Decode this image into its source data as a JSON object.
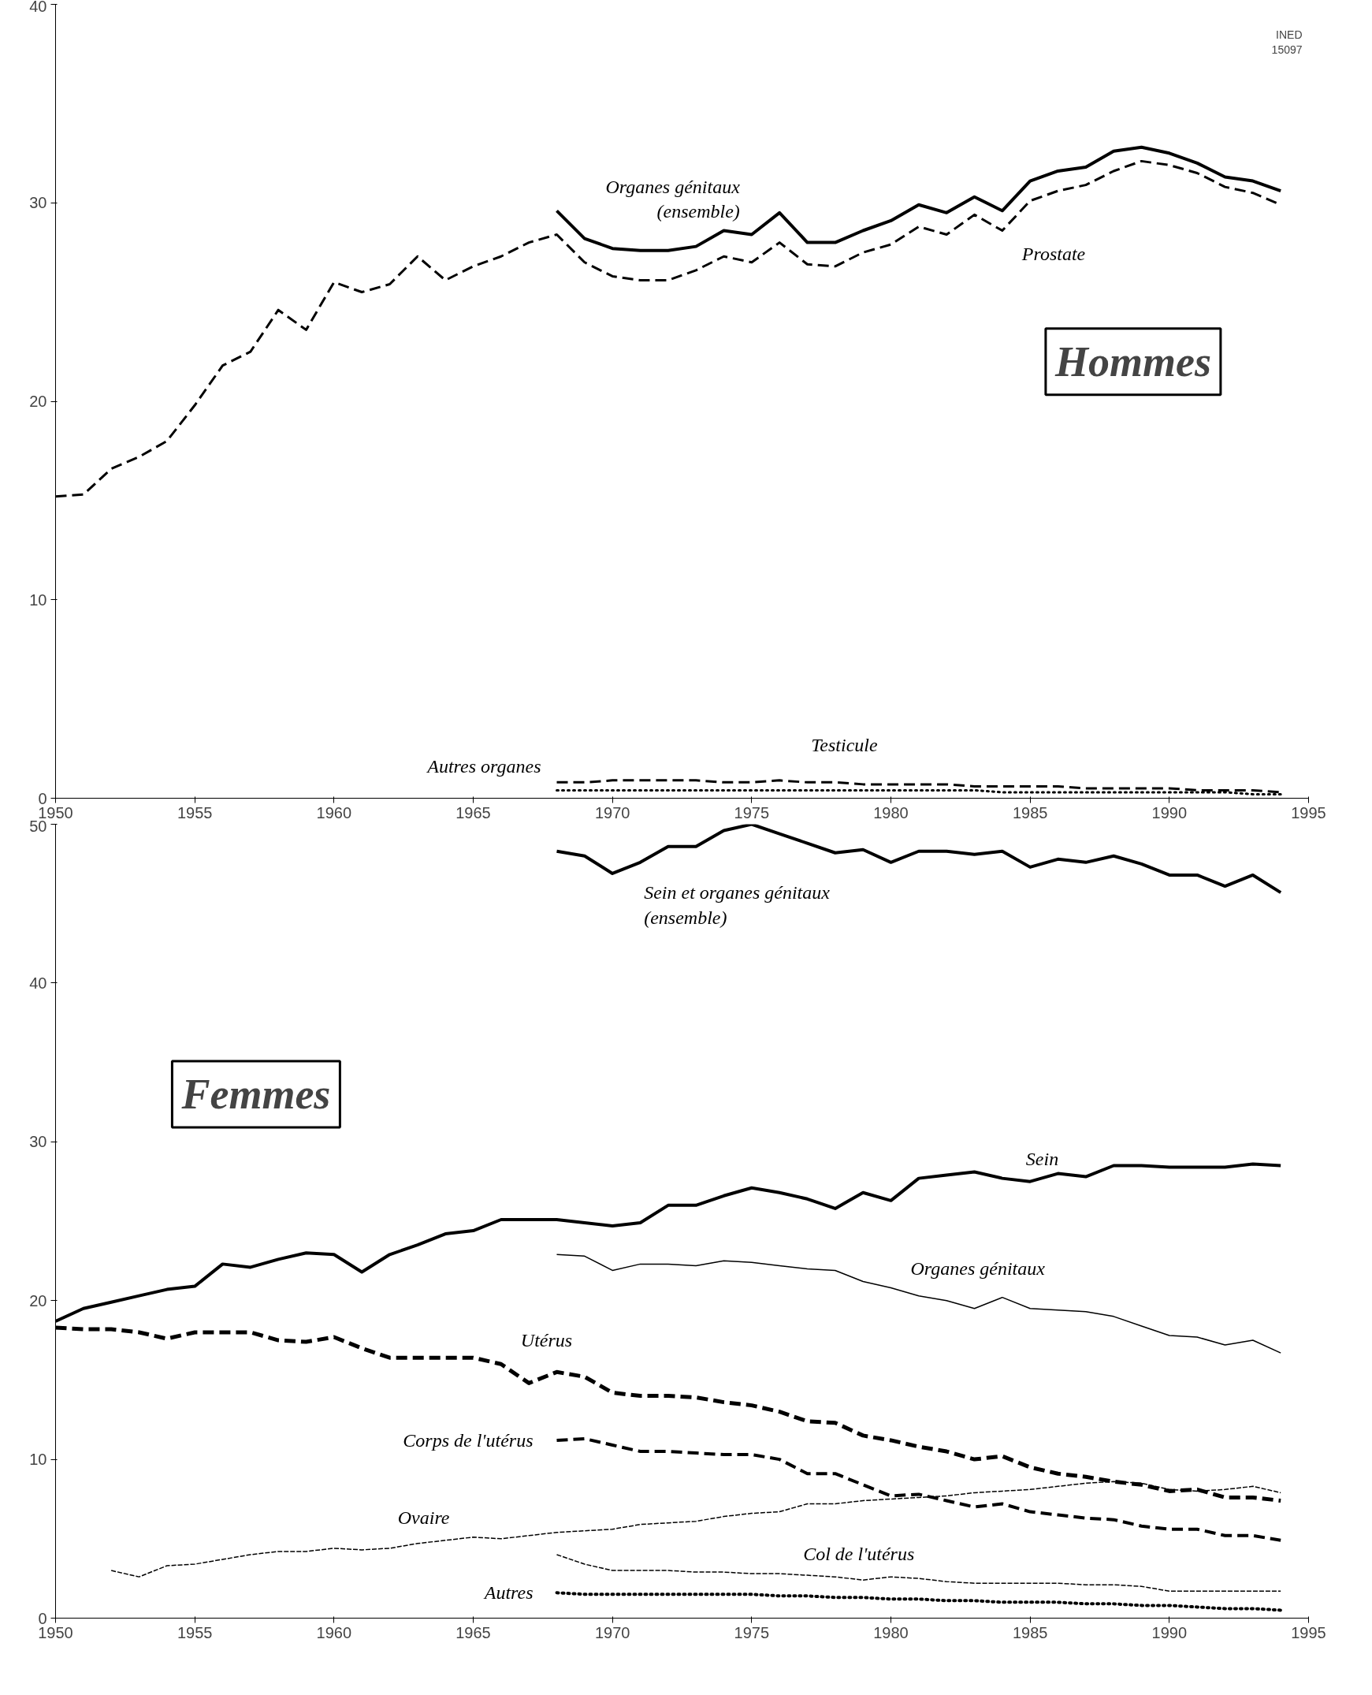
{
  "chart_data": [
    {
      "type": "line",
      "title": "Hommes",
      "annotations": [
        "INED\n15097"
      ],
      "xlim": [
        1950,
        1995
      ],
      "ylim": [
        0,
        40
      ],
      "xticks": [
        1950,
        1955,
        1960,
        1965,
        1970,
        1975,
        1980,
        1985,
        1990,
        1995
      ],
      "yticks": [
        0,
        10,
        20,
        30,
        40
      ],
      "grid": false,
      "marker": "none",
      "x": [
        1950,
        1951,
        1952,
        1953,
        1954,
        1955,
        1956,
        1957,
        1958,
        1959,
        1960,
        1961,
        1962,
        1963,
        1964,
        1965,
        1966,
        1967,
        1968,
        1969,
        1970,
        1971,
        1972,
        1973,
        1974,
        1975,
        1976,
        1977,
        1978,
        1979,
        1980,
        1981,
        1982,
        1983,
        1984,
        1985,
        1986,
        1987,
        1988,
        1989,
        1990,
        1991,
        1992,
        1993,
        1994
      ],
      "series": [
        {
          "name": "Organes génitaux\n(ensemble)",
          "color": "#000000",
          "line_style": "solid",
          "values": [
            null,
            null,
            null,
            null,
            null,
            null,
            null,
            null,
            null,
            null,
            null,
            null,
            null,
            null,
            null,
            null,
            null,
            null,
            29.6,
            28.2,
            27.7,
            27.6,
            27.6,
            27.8,
            28.6,
            28.4,
            29.5,
            28.0,
            28.0,
            28.6,
            29.1,
            29.9,
            29.5,
            30.3,
            29.6,
            31.1,
            31.6,
            31.8,
            32.6,
            32.8,
            32.5,
            32.0,
            31.3,
            31.1,
            30.6
          ]
        },
        {
          "name": "Prostate",
          "color": "#000000",
          "line_style": "dashed",
          "values": [
            15.2,
            15.3,
            16.6,
            17.2,
            18.0,
            19.8,
            21.8,
            22.5,
            24.6,
            23.6,
            26.0,
            25.5,
            25.9,
            27.3,
            26.1,
            26.8,
            27.3,
            28.0,
            28.4,
            27.0,
            26.3,
            26.1,
            26.1,
            26.6,
            27.3,
            27.0,
            28.0,
            26.9,
            26.8,
            27.5,
            27.9,
            28.8,
            28.4,
            29.4,
            28.6,
            30.1,
            30.6,
            30.9,
            31.6,
            32.1,
            31.9,
            31.5,
            30.8,
            30.5,
            29.9
          ]
        },
        {
          "name": "Testicule",
          "color": "#000000",
          "line_style": "dashed",
          "values": [
            null,
            null,
            null,
            null,
            null,
            null,
            null,
            null,
            null,
            null,
            null,
            null,
            null,
            null,
            null,
            null,
            null,
            null,
            0.8,
            0.8,
            0.9,
            0.9,
            0.9,
            0.9,
            0.8,
            0.8,
            0.9,
            0.8,
            0.8,
            0.7,
            0.7,
            0.7,
            0.7,
            0.6,
            0.6,
            0.6,
            0.6,
            0.5,
            0.5,
            0.5,
            0.5,
            0.4,
            0.4,
            0.4,
            0.3
          ]
        },
        {
          "name": "Autres organes",
          "color": "#000000",
          "line_style": "dotted",
          "values": [
            null,
            null,
            null,
            null,
            null,
            null,
            null,
            null,
            null,
            null,
            null,
            null,
            null,
            null,
            null,
            null,
            null,
            null,
            0.4,
            0.4,
            0.4,
            0.4,
            0.4,
            0.4,
            0.4,
            0.4,
            0.4,
            0.4,
            0.4,
            0.4,
            0.4,
            0.4,
            0.4,
            0.4,
            0.3,
            0.3,
            0.3,
            0.3,
            0.3,
            0.3,
            0.3,
            0.3,
            0.3,
            0.2,
            0.2
          ]
        }
      ]
    },
    {
      "type": "line",
      "title": "Femmes",
      "xlim": [
        1950,
        1995
      ],
      "ylim": [
        0,
        50
      ],
      "xticks": [
        1950,
        1955,
        1960,
        1965,
        1970,
        1975,
        1980,
        1985,
        1990,
        1995
      ],
      "yticks": [
        0,
        10,
        20,
        30,
        40,
        50
      ],
      "grid": false,
      "marker": "none",
      "x": [
        1950,
        1951,
        1952,
        1953,
        1954,
        1955,
        1956,
        1957,
        1958,
        1959,
        1960,
        1961,
        1962,
        1963,
        1964,
        1965,
        1966,
        1967,
        1968,
        1969,
        1970,
        1971,
        1972,
        1973,
        1974,
        1975,
        1976,
        1977,
        1978,
        1979,
        1980,
        1981,
        1982,
        1983,
        1984,
        1985,
        1986,
        1987,
        1988,
        1989,
        1990,
        1991,
        1992,
        1993,
        1994
      ],
      "series": [
        {
          "name": "Sein et organes génitaux\n(ensemble)",
          "color": "#000000",
          "line_style": "solid",
          "values": [
            null,
            null,
            null,
            null,
            null,
            null,
            null,
            null,
            null,
            null,
            null,
            null,
            null,
            null,
            null,
            null,
            null,
            null,
            48.3,
            48.0,
            46.9,
            47.6,
            48.6,
            48.6,
            49.6,
            50.0,
            49.4,
            48.8,
            48.2,
            48.4,
            47.6,
            48.3,
            48.3,
            48.1,
            48.3,
            47.3,
            47.8,
            47.6,
            48.0,
            47.5,
            46.8,
            46.8,
            46.1,
            46.8,
            45.7
          ]
        },
        {
          "name": "Sein",
          "color": "#000000",
          "line_style": "solid",
          "values": [
            18.7,
            19.5,
            19.9,
            20.3,
            20.7,
            20.9,
            22.3,
            22.1,
            22.6,
            23.0,
            22.9,
            21.8,
            22.9,
            23.5,
            24.2,
            24.4,
            25.1,
            25.1,
            25.1,
            24.9,
            24.7,
            24.9,
            26.0,
            26.0,
            26.6,
            27.1,
            26.8,
            26.4,
            25.8,
            26.8,
            26.3,
            27.7,
            27.9,
            28.1,
            27.7,
            27.5,
            28.0,
            27.8,
            28.5,
            28.5,
            28.4,
            28.4,
            28.4,
            28.6,
            28.5
          ]
        },
        {
          "name": "Organes génitaux",
          "color": "#000000",
          "line_style": "solid",
          "values": [
            null,
            null,
            null,
            null,
            null,
            null,
            null,
            null,
            null,
            null,
            null,
            null,
            null,
            null,
            null,
            null,
            null,
            null,
            22.9,
            22.8,
            21.9,
            22.3,
            22.3,
            22.2,
            22.5,
            22.4,
            22.2,
            22.0,
            21.9,
            21.2,
            20.8,
            20.3,
            20.0,
            19.5,
            20.2,
            19.5,
            19.4,
            19.3,
            19.0,
            18.4,
            17.8,
            17.7,
            17.2,
            17.5,
            16.7
          ]
        },
        {
          "name": "Utérus",
          "color": "#000000",
          "line_style": "dashed",
          "values": [
            18.3,
            18.2,
            18.2,
            18.0,
            17.6,
            18.0,
            18.0,
            18.0,
            17.5,
            17.4,
            17.7,
            17.0,
            16.4,
            16.4,
            16.4,
            16.4,
            16.0,
            14.8,
            15.5,
            15.2,
            14.2,
            14.0,
            14.0,
            13.9,
            13.6,
            13.4,
            13.0,
            12.4,
            12.3,
            11.5,
            11.2,
            10.8,
            10.5,
            10.0,
            10.2,
            9.5,
            9.1,
            8.9,
            8.6,
            8.4,
            8.0,
            8.1,
            7.6,
            7.6,
            7.4
          ]
        },
        {
          "name": "Corps de l'utérus",
          "color": "#000000",
          "line_style": "dashed",
          "values": [
            null,
            null,
            null,
            null,
            null,
            null,
            null,
            null,
            null,
            null,
            null,
            null,
            null,
            null,
            null,
            null,
            null,
            null,
            11.2,
            11.3,
            10.9,
            10.5,
            10.5,
            10.4,
            10.3,
            10.3,
            10.0,
            9.1,
            9.1,
            8.4,
            7.7,
            7.8,
            7.4,
            7.0,
            7.2,
            6.7,
            6.5,
            6.3,
            6.2,
            5.8,
            5.6,
            5.6,
            5.2,
            5.2,
            4.9
          ]
        },
        {
          "name": "Ovaire",
          "color": "#000000",
          "line_style": "dashed",
          "values": [
            null,
            null,
            3.0,
            2.6,
            3.3,
            3.4,
            3.7,
            4.0,
            4.2,
            4.2,
            4.4,
            4.3,
            4.4,
            4.7,
            4.9,
            5.1,
            5.0,
            5.2,
            5.4,
            5.5,
            5.6,
            5.9,
            6.0,
            6.1,
            6.4,
            6.6,
            6.7,
            7.2,
            7.2,
            7.4,
            7.5,
            7.6,
            7.7,
            7.9,
            8.0,
            8.1,
            8.3,
            8.5,
            8.6,
            8.5,
            8.1,
            8.0,
            8.1,
            8.3,
            7.9
          ]
        },
        {
          "name": "Col de l'utérus",
          "color": "#000000",
          "line_style": "dashed",
          "values": [
            null,
            null,
            null,
            null,
            null,
            null,
            null,
            null,
            null,
            null,
            null,
            null,
            null,
            null,
            null,
            null,
            null,
            null,
            4.0,
            3.4,
            3.0,
            3.0,
            3.0,
            2.9,
            2.9,
            2.8,
            2.8,
            2.7,
            2.6,
            2.4,
            2.6,
            2.5,
            2.3,
            2.2,
            2.2,
            2.2,
            2.2,
            2.1,
            2.1,
            2.0,
            1.7,
            1.7,
            1.7,
            1.7,
            1.7
          ]
        },
        {
          "name": "Autres",
          "color": "#000000",
          "line_style": "dotted",
          "values": [
            null,
            null,
            null,
            null,
            null,
            null,
            null,
            null,
            null,
            null,
            null,
            null,
            null,
            null,
            null,
            null,
            null,
            null,
            1.6,
            1.5,
            1.5,
            1.5,
            1.5,
            1.5,
            1.5,
            1.5,
            1.4,
            1.4,
            1.3,
            1.3,
            1.2,
            1.2,
            1.1,
            1.1,
            1.0,
            1.0,
            1.0,
            0.9,
            0.9,
            0.8,
            0.8,
            0.7,
            0.6,
            0.6,
            0.5
          ]
        }
      ]
    }
  ]
}
